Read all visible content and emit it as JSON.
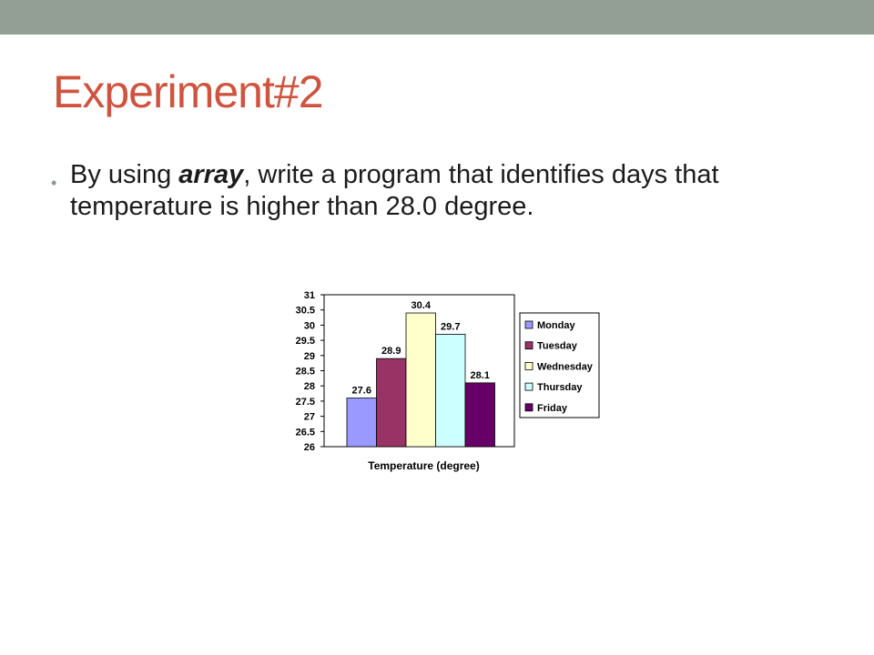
{
  "slide": {
    "title": "Experiment#2",
    "bullet": {
      "prefix": "By using ",
      "emphasis": "array",
      "suffix": ", write a program that identifies days that temperature is higher than 28.0 degree."
    }
  },
  "chart_data": {
    "type": "bar",
    "xlabel": "Temperature (degree)",
    "ylabel": "",
    "title": "",
    "ylim": [
      26,
      31
    ],
    "yticks": [
      "31",
      "30.5",
      "30",
      "29.5",
      "29",
      "28.5",
      "28",
      "27.5",
      "27",
      "26.5",
      "26"
    ],
    "series": [
      {
        "name": "Monday",
        "values": [
          27.6
        ],
        "label": "27.6",
        "color": "#9999ff"
      },
      {
        "name": "Tuesday",
        "values": [
          28.9
        ],
        "label": "28.9",
        "color": "#993366"
      },
      {
        "name": "Wednesday",
        "values": [
          30.4
        ],
        "label": "30.4",
        "color": "#ffffcc"
      },
      {
        "name": "Thursday",
        "values": [
          29.7
        ],
        "label": "29.7",
        "color": "#ccffff"
      },
      {
        "name": "Friday",
        "values": [
          28.1
        ],
        "label": "28.1",
        "color": "#660066"
      }
    ],
    "legend": "right",
    "grid": false
  }
}
